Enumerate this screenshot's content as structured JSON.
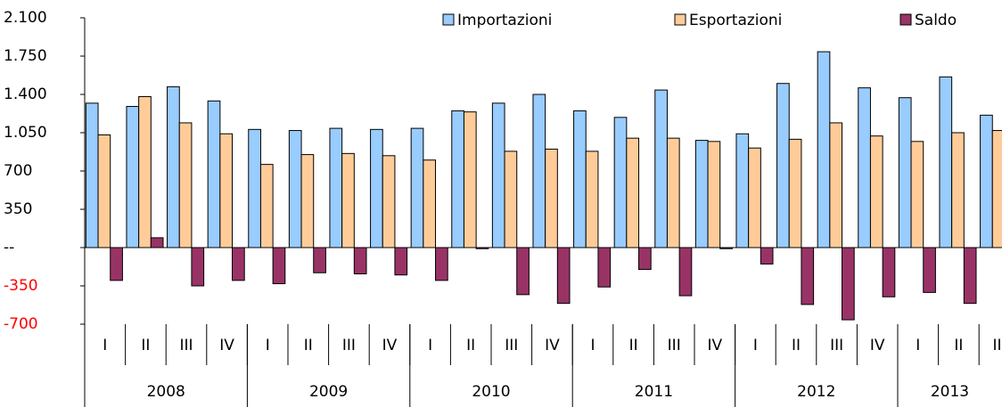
{
  "chart_data": {
    "type": "bar",
    "categories": [
      "I",
      "II",
      "III",
      "IV",
      "I",
      "II",
      "III",
      "IV",
      "I",
      "II",
      "III",
      "IV",
      "I",
      "II",
      "III",
      "IV",
      "I",
      "II",
      "III",
      "IV",
      "I",
      "II",
      "III"
    ],
    "years": [
      {
        "label": "2008",
        "quarters": 4
      },
      {
        "label": "2009",
        "quarters": 4
      },
      {
        "label": "2010",
        "quarters": 4
      },
      {
        "label": "2011",
        "quarters": 4
      },
      {
        "label": "2012",
        "quarters": 4
      },
      {
        "label": "2013",
        "quarters": 3
      }
    ],
    "series": [
      {
        "name": "Importazioni",
        "color": "#99ccff",
        "values": [
          1320,
          1290,
          1470,
          1340,
          1080,
          1070,
          1090,
          1080,
          1090,
          1250,
          1320,
          1400,
          1250,
          1190,
          1440,
          980,
          1040,
          1500,
          1790,
          1460,
          1370,
          1560,
          1210
        ]
      },
      {
        "name": "Esportazioni",
        "color": "#ffcc99",
        "values": [
          1030,
          1380,
          1140,
          1040,
          760,
          850,
          860,
          840,
          800,
          1240,
          880,
          900,
          880,
          1000,
          1000,
          970,
          910,
          990,
          1140,
          1020,
          970,
          1050,
          1070
        ]
      },
      {
        "name": "Saldo",
        "color": "#993366",
        "values": [
          -300,
          90,
          -350,
          -300,
          -330,
          -230,
          -240,
          -250,
          -300,
          -10,
          -430,
          -510,
          -360,
          -200,
          -440,
          -10,
          -150,
          -520,
          -660,
          -450,
          -410,
          -510,
          null
        ]
      }
    ],
    "ylim": [
      -700,
      2100
    ],
    "yticks": [
      {
        "value": 2100,
        "label": "2.100"
      },
      {
        "value": 1750,
        "label": "1.750"
      },
      {
        "value": 1400,
        "label": "1.400"
      },
      {
        "value": 1050,
        "label": "1.050"
      },
      700,
      350,
      {
        "value": 0,
        "label": "--"
      },
      -350,
      -700
    ],
    "legend": "top"
  }
}
